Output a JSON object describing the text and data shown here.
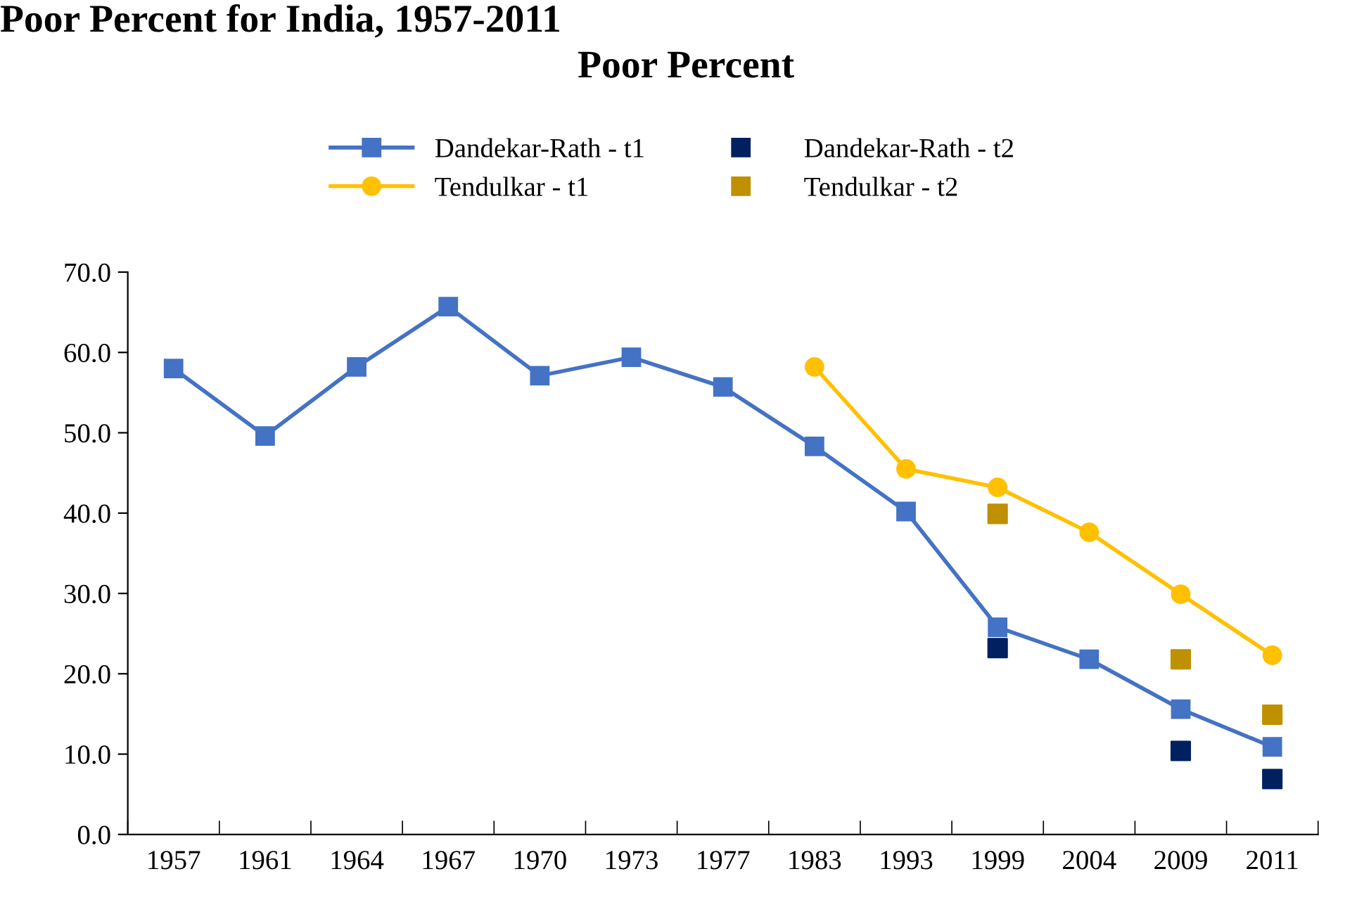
{
  "chart_data": {
    "type": "line",
    "title": "Poor Percent for India, 1957-2011",
    "subtitle": "Poor Percent",
    "categories": [
      "1957",
      "1961",
      "1964",
      "1967",
      "1970",
      "1973",
      "1977",
      "1983",
      "1993",
      "1999",
      "2004",
      "2009",
      "2011"
    ],
    "series": [
      {
        "name": "Dandekar-Rath - t1",
        "color": "#4472c4",
        "marker": "square",
        "values": [
          58.0,
          49.6,
          58.2,
          65.7,
          57.1,
          59.4,
          55.7,
          48.3,
          40.2,
          25.8,
          21.8,
          15.6,
          10.9
        ]
      },
      {
        "name": "Dandekar-Rath - t2",
        "color": "#002060",
        "type": "scatter",
        "marker": "square",
        "values": [
          null,
          null,
          null,
          null,
          null,
          null,
          null,
          null,
          null,
          23.2,
          null,
          10.4,
          6.9
        ]
      },
      {
        "name": "Tendulkar - t1",
        "color": "#ffc000",
        "marker": "circle",
        "values": [
          null,
          null,
          null,
          null,
          null,
          null,
          null,
          58.2,
          45.5,
          43.2,
          37.6,
          29.9,
          22.3
        ]
      },
      {
        "name": "Tendulkar - t2",
        "color": "#bf9000",
        "type": "scatter",
        "marker": "square",
        "values": [
          null,
          null,
          null,
          null,
          null,
          null,
          null,
          null,
          null,
          39.9,
          null,
          21.8,
          14.9
        ]
      }
    ],
    "ylim": [
      0,
      70
    ],
    "yticks": [
      {
        "value": 0,
        "label": "0.0"
      },
      {
        "value": 10,
        "label": "10.0"
      },
      {
        "value": 20,
        "label": "20.0"
      },
      {
        "value": 30,
        "label": "30.0"
      },
      {
        "value": 40,
        "label": "40.0"
      },
      {
        "value": 50,
        "label": "50.0"
      },
      {
        "value": 60,
        "label": "60.0"
      },
      {
        "value": 70,
        "label": "70.0"
      }
    ],
    "grid": false,
    "legend": "top",
    "line_style": "solid"
  }
}
